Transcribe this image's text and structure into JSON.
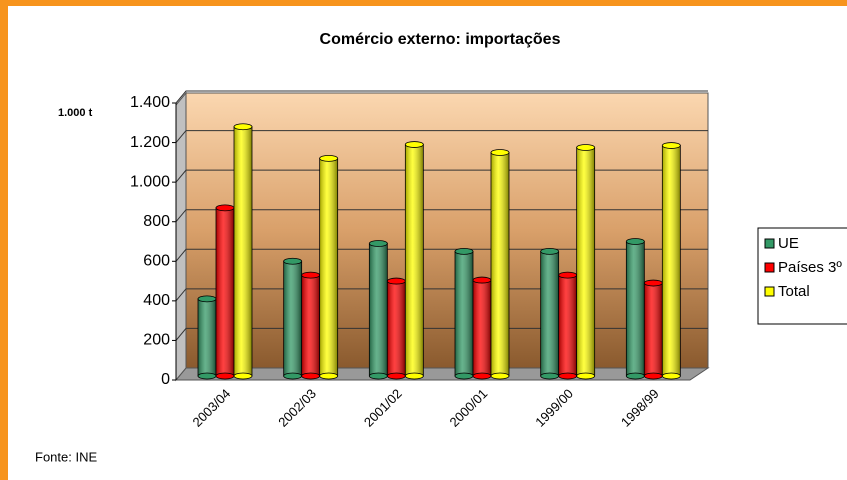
{
  "chart_data": {
    "type": "bar",
    "title": "Comércio externo: importações",
    "y_label": "1.000 t",
    "source": "Fonte: INE",
    "categories": [
      "2003/04",
      "2002/03",
      "2001/02",
      "2000/01",
      "1999/00",
      "1998/99"
    ],
    "series": [
      {
        "name": "UE",
        "color": "#339966",
        "values": [
          410,
          600,
          690,
          650,
          650,
          700
        ]
      },
      {
        "name": "Países 3º",
        "color": "#ff0000",
        "values": [
          870,
          530,
          500,
          505,
          530,
          490
        ]
      },
      {
        "name": "Total",
        "color": "#ffff00",
        "values": [
          1280,
          1120,
          1190,
          1150,
          1175,
          1185
        ]
      }
    ],
    "ylim": [
      0,
      1400
    ],
    "yticks": [
      0,
      200,
      400,
      600,
      800,
      {
        "value": 1000,
        "label": "1.000"
      },
      {
        "value": 1200,
        "label": "1.200"
      },
      {
        "value": 1400,
        "label": "1.400"
      }
    ],
    "grid": true,
    "legend": "right"
  }
}
